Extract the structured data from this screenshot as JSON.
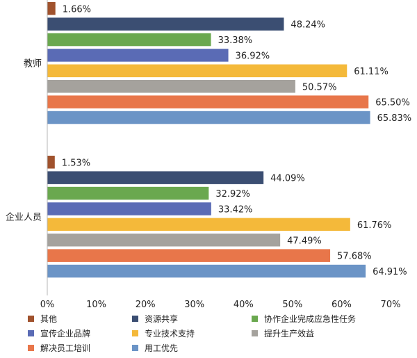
{
  "chart_data": {
    "type": "bar",
    "orientation": "horizontal",
    "categories": [
      "教师",
      "企业人员"
    ],
    "series": [
      {
        "name": "其他",
        "color": "#a0522d",
        "values": [
          1.66,
          1.53
        ]
      },
      {
        "name": "资源共享",
        "color": "#3b4e72",
        "values": [
          48.24,
          44.09
        ]
      },
      {
        "name": "协作企业完成应急性任务",
        "color": "#6aa84f",
        "values": [
          33.38,
          32.92
        ]
      },
      {
        "name": "宣传企业品牌",
        "color": "#5a6bb5",
        "values": [
          36.92,
          33.42
        ]
      },
      {
        "name": "专业技术支持",
        "color": "#f4b93a",
        "values": [
          61.11,
          61.76
        ]
      },
      {
        "name": "提升生产效益",
        "color": "#a5a29d",
        "values": [
          50.57,
          47.49
        ]
      },
      {
        "name": "解决员工培训",
        "color": "#e8764a",
        "values": [
          65.5,
          57.68
        ]
      },
      {
        "name": "用工优先",
        "color": "#6b94c6",
        "values": [
          65.83,
          64.91
        ]
      }
    ],
    "data_labels": [
      [
        "1.66%",
        "48.24%",
        "33.38%",
        "36.92%",
        "61.11%",
        "50.57%",
        "65.50%",
        "65.83%"
      ],
      [
        "1.53%",
        "44.09%",
        "32.92%",
        "33.42%",
        "61.76%",
        "47.49%",
        "57.68%",
        "64.91%"
      ]
    ],
    "xlim": [
      0,
      70
    ],
    "x_ticks": [
      "0%",
      "10%",
      "20%",
      "30%",
      "40%",
      "50%",
      "60%",
      "70%"
    ],
    "legend_position": "bottom",
    "grid": false
  }
}
